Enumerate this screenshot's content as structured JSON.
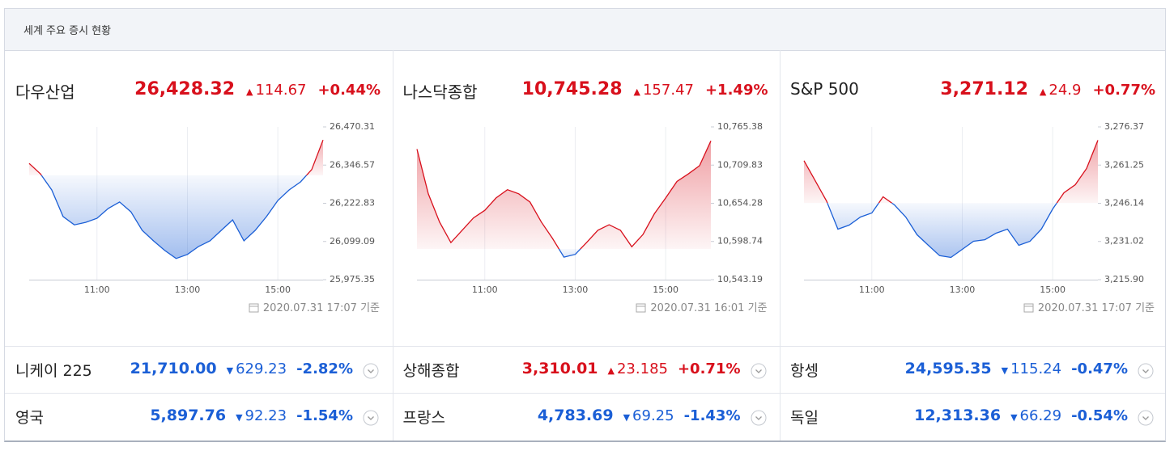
{
  "header": {
    "title": "세계 주요 증시 현황"
  },
  "colors": {
    "up": "#d8101c",
    "down": "#1b5fd6"
  },
  "main": [
    {
      "name": "다우산업",
      "price": "26,428.32",
      "change": "114.67",
      "change_rate": "+0.44%",
      "trend": "up",
      "updated": "2020.07.31 17:07 기준",
      "chart_data": {
        "type": "line",
        "x": [
          9.5,
          9.75,
          10,
          10.25,
          10.5,
          10.75,
          11,
          11.25,
          11.5,
          11.75,
          12,
          12.25,
          12.5,
          12.75,
          13,
          13.25,
          13.5,
          13.75,
          14,
          14.25,
          14.5,
          14.75,
          15,
          15.25,
          15.5,
          15.75,
          16
        ],
        "values": [
          26352,
          26318,
          26266,
          26180,
          26153,
          26161,
          26174,
          26206,
          26227,
          26195,
          26135,
          26101,
          26070,
          26044,
          26057,
          26083,
          26101,
          26135,
          26169,
          26101,
          26135,
          26180,
          26232,
          26266,
          26292,
          26332,
          26428
        ],
        "xlim": [
          9.5,
          16
        ],
        "xticks": [
          {
            "value": 11,
            "label": "11:00"
          },
          {
            "value": 13,
            "label": "13:00"
          },
          {
            "value": 15,
            "label": "15:00"
          }
        ],
        "ylim": [
          25975.35,
          26470.31
        ],
        "yticks": [
          {
            "value": 26470.31,
            "label": "26,470.31"
          },
          {
            "value": 26346.57,
            "label": "26,346.57"
          },
          {
            "value": 26222.83,
            "label": "26,222.83"
          },
          {
            "value": 26099.09,
            "label": "26,099.09"
          },
          {
            "value": 25975.35,
            "label": "25,975.35"
          }
        ]
      }
    },
    {
      "name": "나스닥종합",
      "price": "10,745.28",
      "change": "157.47",
      "change_rate": "+1.49%",
      "trend": "up",
      "updated": "2020.07.31 16:01 기준",
      "chart_data": {
        "type": "line",
        "x": [
          9.5,
          9.75,
          10,
          10.25,
          10.5,
          10.75,
          11,
          11.25,
          11.5,
          11.75,
          12,
          12.25,
          12.5,
          12.75,
          13,
          13.25,
          13.5,
          13.75,
          14,
          14.25,
          14.5,
          14.75,
          15,
          15.25,
          15.5,
          15.75,
          16
        ],
        "values": [
          10733,
          10668,
          10627,
          10597,
          10615,
          10633,
          10644,
          10662,
          10674,
          10668,
          10656,
          10627,
          10603,
          10576,
          10580,
          10597,
          10615,
          10623,
          10615,
          10591,
          10609,
          10639,
          10662,
          10686,
          10697,
          10709,
          10745
        ],
        "xlim": [
          9.5,
          16
        ],
        "xticks": [
          {
            "value": 11,
            "label": "11:00"
          },
          {
            "value": 13,
            "label": "13:00"
          },
          {
            "value": 15,
            "label": "15:00"
          }
        ],
        "ylim": [
          10543.19,
          10765.38
        ],
        "yticks": [
          {
            "value": 10765.38,
            "label": "10,765.38"
          },
          {
            "value": 10709.83,
            "label": "10,709.83"
          },
          {
            "value": 10654.28,
            "label": "10,654.28"
          },
          {
            "value": 10598.74,
            "label": "10,598.74"
          },
          {
            "value": 10543.19,
            "label": "10,543.19"
          }
        ]
      }
    },
    {
      "name": "S&P 500",
      "price": "3,271.12",
      "change": "24.9",
      "change_rate": "+0.77%",
      "trend": "up",
      "updated": "2020.07.31 17:07 기준",
      "chart_data": {
        "type": "line",
        "x": [
          9.5,
          9.75,
          10,
          10.25,
          10.5,
          10.75,
          11,
          11.25,
          11.5,
          11.75,
          12,
          12.25,
          12.5,
          12.75,
          13,
          13.25,
          13.5,
          13.75,
          14,
          14.25,
          14.5,
          14.75,
          15,
          15.25,
          15.5,
          15.75,
          16
        ],
        "values": [
          3263,
          3255,
          3247,
          3235.9,
          3237.5,
          3240.7,
          3242.3,
          3248.7,
          3245.5,
          3240.7,
          3233.7,
          3229.5,
          3225.4,
          3224.7,
          3227.9,
          3231.1,
          3231.7,
          3234.3,
          3235.9,
          3229.5,
          3231.1,
          3235.9,
          3243.9,
          3250.3,
          3253.5,
          3259.9,
          3271.1
        ],
        "xlim": [
          9.5,
          16
        ],
        "xticks": [
          {
            "value": 11,
            "label": "11:00"
          },
          {
            "value": 13,
            "label": "13:00"
          },
          {
            "value": 15,
            "label": "15:00"
          }
        ],
        "ylim": [
          3215.9,
          3276.37
        ],
        "yticks": [
          {
            "value": 3276.37,
            "label": "3,276.37"
          },
          {
            "value": 3261.25,
            "label": "3,261.25"
          },
          {
            "value": 3246.14,
            "label": "3,246.14"
          },
          {
            "value": 3231.02,
            "label": "3,231.02"
          },
          {
            "value": 3215.9,
            "label": "3,215.90"
          }
        ]
      }
    }
  ],
  "rows": [
    {
      "name": "니케이 225",
      "price": "21,710.00",
      "change": "629.23",
      "change_rate": "-2.82%",
      "trend": "down"
    },
    {
      "name": "상해종합",
      "price": "3,310.01",
      "change": "23.185",
      "change_rate": "+0.71%",
      "trend": "up"
    },
    {
      "name": "항셍",
      "price": "24,595.35",
      "change": "115.24",
      "change_rate": "-0.47%",
      "trend": "down"
    },
    {
      "name": "영국",
      "price": "5,897.76",
      "change": "92.23",
      "change_rate": "-1.54%",
      "trend": "down"
    },
    {
      "name": "프랑스",
      "price": "4,783.69",
      "change": "69.25",
      "change_rate": "-1.43%",
      "trend": "down"
    },
    {
      "name": "독일",
      "price": "12,313.36",
      "change": "66.29",
      "change_rate": "-0.54%",
      "trend": "down"
    }
  ]
}
